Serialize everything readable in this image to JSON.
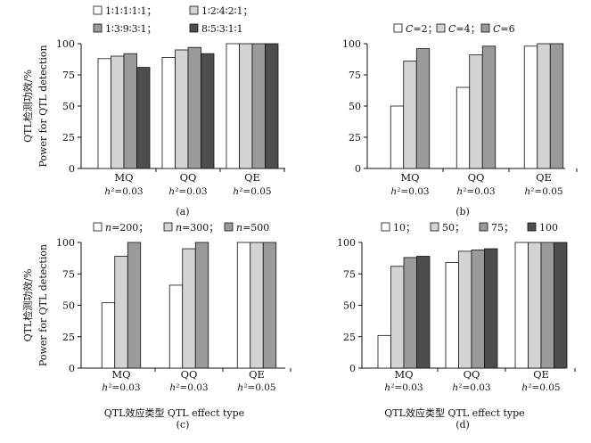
{
  "figure": {
    "ylabel_cn": "QTL检测功效/%",
    "ylabel_en": "Power for QTL detection",
    "xlabel_combined_c": "QTL效应类型  QTL effect type",
    "xlabel_combined_d": "QTL效应类型 QTL  effect type"
  },
  "chart_data": [
    {
      "type": "bar",
      "panel_label": "(a)",
      "categories": [
        "MQ",
        "QQ",
        "QE"
      ],
      "heritability": [
        "h²=0.03",
        "h²=0.03",
        "h²=0.05"
      ],
      "ylim": [
        0,
        100
      ],
      "yticks": [
        "0",
        "25",
        "50",
        "75",
        "100"
      ],
      "ylabel_cn": "QTL检测功效/%",
      "ylabel_en": "Power for QTL detection",
      "xlabel": "",
      "legend_position": "top",
      "series": [
        {
          "name": "1∶1∶1∶1∶1；",
          "color": "#ffffff",
          "values": [
            88,
            89,
            100
          ]
        },
        {
          "name": "1∶2∶4∶2∶1；",
          "color": "#d3d3d3",
          "values": [
            90,
            95,
            100
          ]
        },
        {
          "name": "1∶3∶9∶3∶1；",
          "color": "#9a9a9a",
          "values": [
            92,
            97,
            100
          ]
        },
        {
          "name": "8∶5∶3∶1∶1",
          "color": "#4d4d4d",
          "values": [
            81,
            92,
            100
          ]
        }
      ]
    },
    {
      "type": "bar",
      "panel_label": "(b)",
      "categories": [
        "MQ",
        "QQ",
        "QE"
      ],
      "heritability": [
        "h²=0.03",
        "h²=0.03",
        "h²=0.05"
      ],
      "ylim": [
        0,
        100
      ],
      "yticks": [
        "0",
        "25",
        "50",
        "75",
        "100"
      ],
      "ylabel_cn": "",
      "ylabel_en": "",
      "xlabel": "",
      "legend_position": "top",
      "series": [
        {
          "name": "C=2；",
          "color": "#ffffff",
          "values": [
            50,
            65,
            98
          ]
        },
        {
          "name": "C=4；",
          "color": "#d3d3d3",
          "values": [
            86,
            91,
            100
          ]
        },
        {
          "name": "C=6",
          "color": "#9a9a9a",
          "values": [
            96,
            98,
            100
          ]
        }
      ]
    },
    {
      "type": "bar",
      "panel_label": "(c)",
      "categories": [
        "MQ",
        "QQ",
        "QE"
      ],
      "heritability": [
        "h²=0.03",
        "h²=0.03",
        "h²=0.05"
      ],
      "ylim": [
        0,
        100
      ],
      "yticks": [
        "0",
        "25",
        "50",
        "75",
        "100"
      ],
      "ylabel_cn": "QTL检测功效/%",
      "ylabel_en": "Power for QTL detection",
      "xlabel": "QTL效应类型  QTL effect type",
      "legend_position": "top",
      "series": [
        {
          "name": "n=200；",
          "color": "#ffffff",
          "values": [
            52,
            66,
            100
          ]
        },
        {
          "name": "n=300；",
          "color": "#d3d3d3",
          "values": [
            89,
            95,
            100
          ]
        },
        {
          "name": "n=500",
          "color": "#9a9a9a",
          "values": [
            100,
            100,
            100
          ]
        }
      ]
    },
    {
      "type": "bar",
      "panel_label": "(d)",
      "categories": [
        "MQ",
        "QQ",
        "QE"
      ],
      "heritability": [
        "h²=0.03",
        "h²=0.03",
        "h²=0.05"
      ],
      "ylim": [
        0,
        100
      ],
      "yticks": [
        "0",
        "25",
        "50",
        "75",
        "100"
      ],
      "ylabel_cn": "",
      "ylabel_en": "",
      "xlabel": "QTL效应类型 QTL  effect type",
      "legend_position": "top",
      "series": [
        {
          "name": "10；",
          "color": "#ffffff",
          "values": [
            26,
            84,
            100
          ]
        },
        {
          "name": "50；",
          "color": "#d3d3d3",
          "values": [
            81,
            93,
            100
          ]
        },
        {
          "name": "75；",
          "color": "#9a9a9a",
          "values": [
            88,
            94,
            100
          ]
        },
        {
          "name": "100",
          "color": "#4d4d4d",
          "values": [
            89,
            95,
            100
          ]
        }
      ]
    }
  ]
}
